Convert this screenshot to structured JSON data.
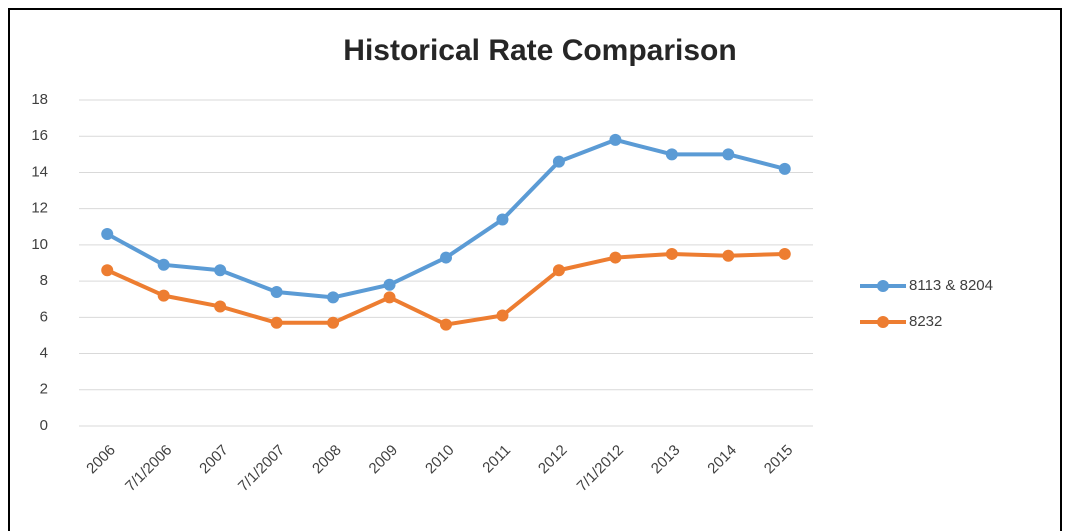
{
  "chart_data": {
    "type": "line",
    "title": "Historical Rate Comparison",
    "categories": [
      "2006",
      "7/1/2006",
      "2007",
      "7/1/2007",
      "2008",
      "2009",
      "2010",
      "2011",
      "2012",
      "7/1/2012",
      "2013",
      "2014",
      "2015"
    ],
    "series": [
      {
        "name": "8113 & 8204",
        "color": "#5b9bd5",
        "values": [
          10.6,
          8.9,
          8.6,
          7.4,
          7.1,
          7.8,
          9.3,
          11.4,
          14.6,
          15.8,
          15.0,
          15.0,
          14.2
        ]
      },
      {
        "name": "8232",
        "color": "#ed7d31",
        "values": [
          8.6,
          7.2,
          6.6,
          5.7,
          5.7,
          7.1,
          5.6,
          6.1,
          8.6,
          9.3,
          9.5,
          9.4,
          9.5
        ]
      }
    ],
    "ylim": [
      0,
      18
    ],
    "yticks": [
      0,
      2,
      4,
      6,
      8,
      10,
      12,
      14,
      16,
      18
    ],
    "grid": true,
    "legend": "right"
  }
}
